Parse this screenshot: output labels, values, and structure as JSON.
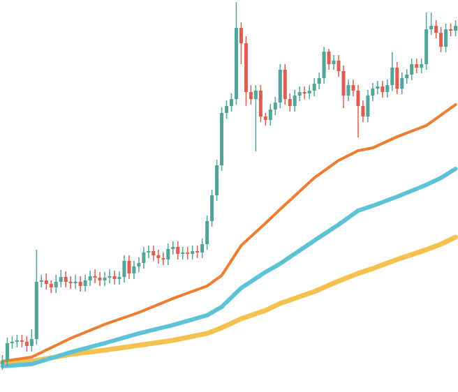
{
  "chart_data": {
    "type": "candlestick",
    "ylim": [
      0,
      562
    ],
    "xlim": [
      -0.5,
      93.5
    ],
    "up_color": "#52a49a",
    "down_color": "#dd5e4f",
    "open": [
      40,
      45,
      70,
      72,
      74,
      72,
      66,
      76,
      158,
      160,
      155,
      150,
      158,
      165,
      158,
      156,
      158,
      152,
      160,
      166,
      164,
      160,
      164,
      166,
      162,
      165,
      188,
      170,
      180,
      185,
      200,
      202,
      196,
      192,
      190,
      205,
      208,
      198,
      200,
      198,
      202,
      200,
      212,
      245,
      282,
      325,
      400,
      410,
      420,
      522,
      500,
      430,
      420,
      432,
      395,
      390,
      405,
      415,
      462,
      420,
      410,
      425,
      430,
      428,
      432,
      442,
      450,
      488,
      470,
      475,
      460,
      425,
      440,
      432,
      410,
      395,
      425,
      435,
      438,
      430,
      440,
      465,
      435,
      450,
      455,
      470,
      465,
      470,
      520,
      525,
      515,
      495,
      520,
      518
    ],
    "high": [
      53,
      78,
      80,
      82,
      82,
      80,
      90,
      204,
      168,
      170,
      160,
      168,
      175,
      173,
      166,
      168,
      166,
      168,
      174,
      176,
      172,
      172,
      176,
      174,
      173,
      196,
      196,
      188,
      193,
      208,
      210,
      210,
      204,
      200,
      213,
      216,
      216,
      208,
      208,
      210,
      210,
      220,
      253,
      290,
      333,
      408,
      418,
      428,
      559,
      530,
      510,
      440,
      440,
      440,
      400,
      413,
      423,
      470,
      470,
      428,
      433,
      438,
      438,
      440,
      450,
      458,
      495,
      492,
      483,
      483,
      468,
      448,
      448,
      440,
      418,
      433,
      443,
      446,
      446,
      448,
      487,
      473,
      458,
      463,
      478,
      478,
      478,
      544,
      544,
      533,
      523,
      528,
      528,
      533
    ],
    "low": [
      32,
      37,
      62,
      64,
      64,
      58,
      58,
      68,
      150,
      147,
      142,
      142,
      150,
      150,
      148,
      148,
      144,
      144,
      152,
      156,
      152,
      152,
      156,
      154,
      154,
      157,
      162,
      162,
      172,
      177,
      192,
      188,
      184,
      182,
      182,
      197,
      190,
      190,
      190,
      190,
      192,
      192,
      204,
      237,
      274,
      317,
      392,
      402,
      412,
      470,
      410,
      412,
      345,
      387,
      382,
      382,
      397,
      407,
      412,
      402,
      402,
      417,
      420,
      420,
      424,
      434,
      442,
      462,
      462,
      452,
      407,
      417,
      424,
      365,
      387,
      387,
      417,
      427,
      422,
      422,
      432,
      427,
      427,
      442,
      447,
      457,
      457,
      462,
      512,
      507,
      487,
      487,
      510,
      510
    ],
    "close": [
      45,
      70,
      72,
      74,
      72,
      66,
      76,
      158,
      160,
      155,
      150,
      158,
      165,
      158,
      156,
      158,
      152,
      160,
      166,
      164,
      160,
      164,
      166,
      162,
      165,
      188,
      170,
      180,
      185,
      200,
      202,
      196,
      192,
      190,
      205,
      208,
      198,
      200,
      198,
      202,
      200,
      212,
      245,
      282,
      325,
      400,
      410,
      420,
      522,
      500,
      430,
      420,
      432,
      395,
      390,
      405,
      415,
      462,
      420,
      410,
      425,
      430,
      428,
      432,
      442,
      450,
      488,
      470,
      475,
      460,
      425,
      440,
      432,
      410,
      395,
      425,
      435,
      438,
      430,
      440,
      465,
      435,
      450,
      455,
      470,
      465,
      470,
      520,
      525,
      515,
      495,
      520,
      518,
      525
    ],
    "lines": [
      {
        "color": "#f4c14f",
        "x": [
          0,
          6,
          14,
          21,
          28,
          35,
          42,
          45,
          49,
          54,
          57,
          64,
          69,
          73,
          76,
          81,
          87,
          90,
          93
        ],
        "values": [
          42,
          44,
          54,
          60,
          67,
          74,
          84,
          92,
          105,
          117,
          127,
          144,
          159,
          170,
          177,
          190,
          204,
          212,
          222
        ]
      },
      {
        "color": "#5bc2d8",
        "x": [
          0,
          6,
          14,
          21,
          28,
          35,
          42,
          45,
          49,
          54,
          57,
          64,
          69,
          73,
          76,
          81,
          87,
          90,
          93
        ],
        "values": [
          37,
          40,
          57,
          70,
          84,
          96,
          110,
          122,
          149,
          172,
          184,
          217,
          240,
          260,
          267,
          280,
          297,
          307,
          320
        ]
      },
      {
        "color": "#ee7d31",
        "x": [
          0,
          6,
          14,
          21,
          28,
          35,
          42,
          45,
          49,
          54,
          57,
          64,
          69,
          73,
          76,
          81,
          87,
          90,
          93
        ],
        "values": [
          44,
          50,
          77,
          97,
          114,
          134,
          152,
          167,
          210,
          242,
          262,
          307,
          332,
          346,
          350,
          366,
          382,
          397,
          412
        ]
      }
    ]
  }
}
